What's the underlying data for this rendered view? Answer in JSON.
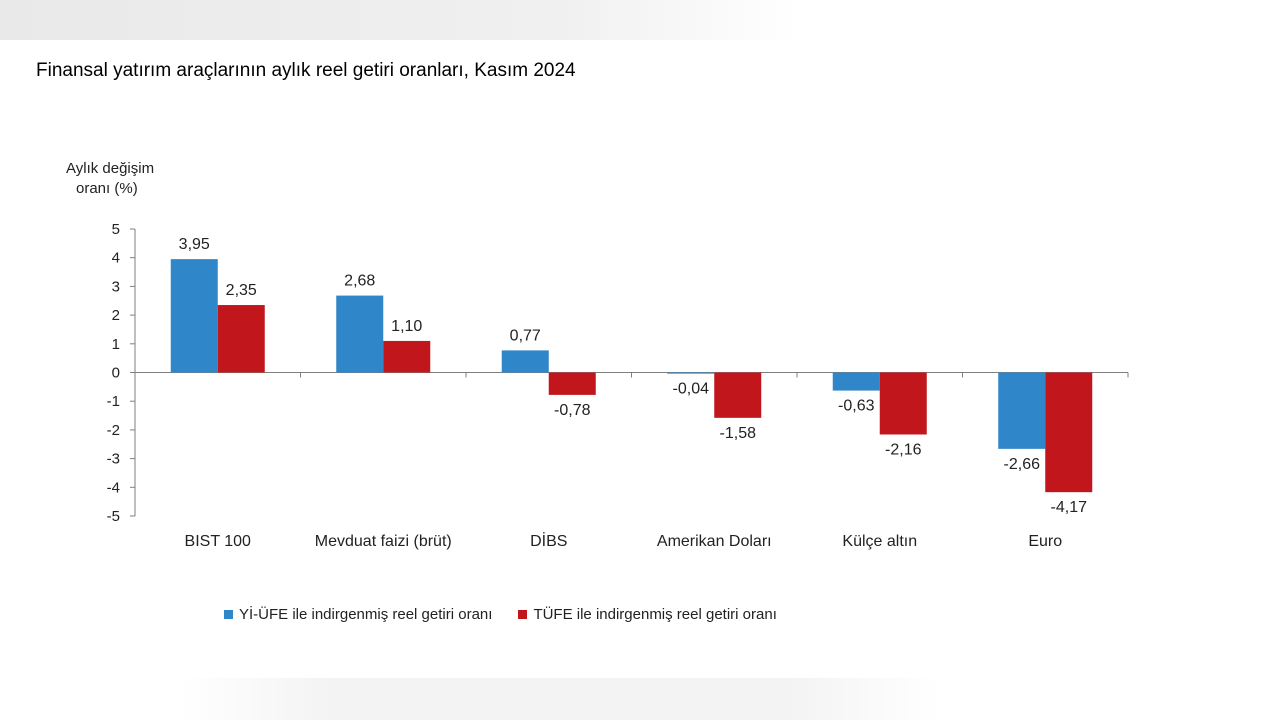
{
  "title": "Finansal yatırım araçlarının aylık reel getiri oranları, Kasım 2024",
  "chart_data": {
    "type": "bar",
    "ylabel_lines": [
      "Aylık değişim",
      "oranı (%)"
    ],
    "ylim": [
      -5,
      5
    ],
    "yticks": [
      5,
      4,
      3,
      2,
      1,
      0,
      -1,
      -2,
      -3,
      -4,
      -5
    ],
    "categories": [
      "BIST 100",
      "Mevduat faizi (brüt)",
      "DİBS",
      "Amerikan Doları",
      "Külçe altın",
      "Euro"
    ],
    "series": [
      {
        "name": "Yİ-ÜFE ile indirgenmiş reel getiri oranı",
        "color": "#2f86c8",
        "values": [
          3.95,
          2.68,
          0.77,
          -0.04,
          -0.63,
          -2.66
        ],
        "labels": [
          "3,95",
          "2,68",
          "0,77",
          "-0,04",
          "-0,63",
          "-2,66"
        ]
      },
      {
        "name": "TÜFE ile indirgenmiş reel getiri oranı",
        "color": "#c0161c",
        "values": [
          2.35,
          1.1,
          -0.78,
          -1.58,
          -2.16,
          -4.17
        ],
        "labels": [
          "2,35",
          "1,10",
          "-0,78",
          "-1,58",
          "-2,16",
          "-4,17"
        ]
      }
    ],
    "legend_position": "bottom"
  }
}
